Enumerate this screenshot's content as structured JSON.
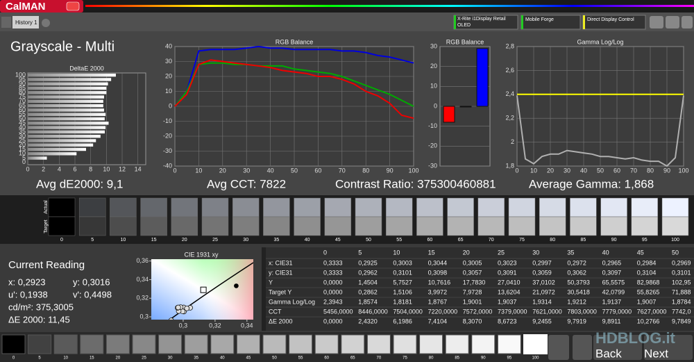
{
  "app": {
    "logo": "CalMAN",
    "tab": "History 1",
    "devices": [
      "X-Rite i1Display Retail OLED",
      "Mobile Forge",
      "Direct Display Control"
    ]
  },
  "title": "Grayscale - Multi",
  "deltae": {
    "type": "bar",
    "title": "DeltaE 2000",
    "categories": [
      0,
      5,
      10,
      15,
      20,
      25,
      30,
      35,
      40,
      45,
      50,
      55,
      60,
      65,
      70,
      75,
      80,
      85,
      90,
      95,
      100
    ],
    "values": [
      0,
      2.43,
      6.2,
      7.41,
      8.31,
      8.67,
      9.25,
      9.79,
      9.89,
      10.28,
      9.78,
      9.9,
      9.7,
      9.6,
      9.6,
      9.7,
      10,
      10,
      10.2,
      10.6,
      11.2
    ],
    "xlim": [
      0,
      15
    ],
    "xticks": [
      0,
      2,
      4,
      6,
      8,
      10,
      12,
      14
    ]
  },
  "rgb_balance": {
    "type": "line",
    "title": "RGB Balance",
    "x": [
      0,
      5,
      10,
      15,
      20,
      25,
      30,
      35,
      40,
      45,
      50,
      55,
      60,
      65,
      70,
      75,
      80,
      85,
      90,
      95,
      100
    ],
    "series": [
      {
        "color": "#0000dd",
        "values": [
          0,
          10,
          37,
          38,
          38,
          38,
          39,
          40,
          39,
          39,
          38,
          38,
          38,
          38,
          37,
          37,
          36,
          34,
          33,
          31,
          29
        ]
      },
      {
        "color": "#00aa00",
        "values": [
          0,
          10,
          28,
          29,
          29,
          28,
          28,
          27,
          27,
          27,
          25,
          24,
          23,
          22,
          20,
          17,
          14,
          11,
          8,
          4,
          0
        ]
      },
      {
        "color": "#ee0000",
        "values": [
          0,
          8,
          28,
          31,
          30,
          29,
          28,
          27,
          26,
          24,
          23,
          22,
          20,
          20,
          18,
          15,
          10,
          7,
          2,
          -6,
          -8
        ]
      }
    ],
    "xlim": [
      0,
      100
    ],
    "xticks": [
      0,
      10,
      20,
      30,
      40,
      50,
      60,
      70,
      80,
      90,
      100
    ],
    "ylim": [
      -40,
      40
    ],
    "yticks": [
      -40,
      -30,
      -20,
      -10,
      0,
      10,
      20,
      30,
      40
    ]
  },
  "rgb_bars": {
    "type": "bar",
    "title": "RGB Balance",
    "values": [
      -8,
      0,
      29
    ],
    "colors": [
      "#ff0000",
      "#00cc00",
      "#0000ff"
    ],
    "ylim": [
      -30,
      30
    ],
    "yticks": [
      -30,
      -20,
      -10,
      0,
      10,
      20,
      30
    ]
  },
  "gamma": {
    "type": "line",
    "title": "Gamma Log/Log",
    "x": [
      0,
      5,
      10,
      15,
      20,
      25,
      30,
      35,
      40,
      45,
      50,
      55,
      60,
      65,
      70,
      75,
      80,
      85,
      90,
      95,
      100
    ],
    "series": [
      {
        "color": "#b0b0b0",
        "values": [
          2.39,
          1.86,
          1.82,
          1.88,
          1.9,
          1.9,
          1.93,
          1.92,
          1.91,
          1.9,
          1.88,
          1.88,
          1.87,
          1.86,
          1.87,
          1.85,
          1.84,
          1.84,
          1.8,
          1.87,
          2.39
        ]
      },
      {
        "color": "#ffff00",
        "values": [
          2.4,
          2.4,
          2.4,
          2.4,
          2.4,
          2.4,
          2.4,
          2.4,
          2.4,
          2.4,
          2.4,
          2.4,
          2.4,
          2.4,
          2.4,
          2.4,
          2.4,
          2.4,
          2.4,
          2.4,
          2.4
        ]
      }
    ],
    "xlim": [
      0,
      100
    ],
    "xticks": [
      0,
      10,
      20,
      30,
      40,
      50,
      60,
      70,
      80,
      90,
      100
    ],
    "ylim": [
      1.8,
      2.8
    ],
    "yticks": [
      {
        "value": 1.8,
        "label": "1,8"
      },
      2,
      {
        "value": 2.2,
        "label": "2,2"
      },
      {
        "value": 2.4,
        "label": "2,4"
      },
      {
        "value": 2.6,
        "label": "2,6"
      },
      {
        "value": 2.8,
        "label": "2,8"
      }
    ]
  },
  "summary": [
    "Avg dE2000: 9,1",
    "Avg CCT: 7822",
    "Contrast Ratio: 375300460881",
    "Average Gamma: 1,868"
  ],
  "swatches": {
    "row_labels": [
      "Actual",
      "Target"
    ],
    "levels": [
      0,
      5,
      10,
      15,
      20,
      25,
      30,
      35,
      40,
      45,
      50,
      55,
      60,
      65,
      70,
      75,
      80,
      85,
      90,
      95,
      100
    ]
  },
  "current_reading": {
    "title": "Current Reading",
    "lines": [
      "x: 0,2923",
      "y: 0,3016",
      "u': 0,1938",
      "v': 0,4498",
      "cd/m²: 375,3005",
      "ΔE 2000: 11,45"
    ]
  },
  "cie": {
    "type": "scatter",
    "title": "CIE 1931 xy",
    "x": [
      0.3333,
      0.2925,
      0.3003,
      0.3044,
      0.3005,
      0.3023,
      0.2997,
      0.2972,
      0.2965,
      0.2984,
      0.2969
    ],
    "y": [
      0.3333,
      0.2962,
      0.3101,
      0.3098,
      0.3057,
      0.3091,
      0.3059,
      0.3062,
      0.3097,
      0.3104,
      0.3101
    ],
    "target_x": 0.3127,
    "target_y": 0.329,
    "xlim": [
      0.28,
      0.344
    ],
    "xticks": [
      {
        "value": 0.3,
        "label": "0,3"
      },
      {
        "value": 0.32,
        "label": "0,32"
      },
      {
        "value": 0.34,
        "label": "0,34"
      }
    ],
    "ylim": [
      0.297,
      0.362
    ],
    "yticks": [
      {
        "value": 0.3,
        "label": "0,3"
      },
      {
        "value": 0.32,
        "label": "0,32"
      },
      {
        "value": 0.34,
        "label": "0,34"
      },
      {
        "value": 0.36,
        "label": "0,36"
      }
    ]
  },
  "table": {
    "header": [
      "0",
      "5",
      "10",
      "15",
      "20",
      "25",
      "30",
      "35",
      "40",
      "45",
      "50"
    ],
    "rows": [
      [
        "x: CIE31",
        "0,3333",
        "0,2925",
        "0,3003",
        "0,3044",
        "0,3005",
        "0,3023",
        "0,2997",
        "0,2972",
        "0,2965",
        "0,2984",
        "0,2969"
      ],
      [
        "y: CIE31",
        "0,3333",
        "0,2962",
        "0,3101",
        "0,3098",
        "0,3057",
        "0,3091",
        "0,3059",
        "0,3062",
        "0,3097",
        "0,3104",
        "0,3101"
      ],
      [
        "Y",
        "0,0000",
        "1,4504",
        "5,7527",
        "10,7616",
        "17,7830",
        "27,0410",
        "37,0102",
        "50,3793",
        "65,5575",
        "82,9868",
        "102,95"
      ],
      [
        "Target Y",
        "0,0000",
        "0,2862",
        "1,5106",
        "3,9972",
        "7,9728",
        "13,6204",
        "21,0972",
        "30,5418",
        "42,0799",
        "55,8265",
        "71,888"
      ],
      [
        "Gamma Log/Log",
        "2,3943",
        "1,8574",
        "1,8181",
        "1,8767",
        "1,9001",
        "1,9037",
        "1,9314",
        "1,9212",
        "1,9137",
        "1,9007",
        "1,8784"
      ],
      [
        "CCT",
        "5456,0000",
        "8446,0000",
        "7504,0000",
        "7220,0000",
        "7572,0000",
        "7379,0000",
        "7621,0000",
        "7803,0000",
        "7779,0000",
        "7627,0000",
        "7742,0"
      ],
      [
        "ΔE 2000",
        "0,0000",
        "2,4320",
        "6,1986",
        "7,4104",
        "8,3070",
        "8,6723",
        "9,2455",
        "9,7919",
        "9,8911",
        "10,2766",
        "9,7849"
      ]
    ]
  },
  "nav": {
    "back": "Back",
    "next": "Next"
  },
  "watermark": "HDBLOG.it"
}
